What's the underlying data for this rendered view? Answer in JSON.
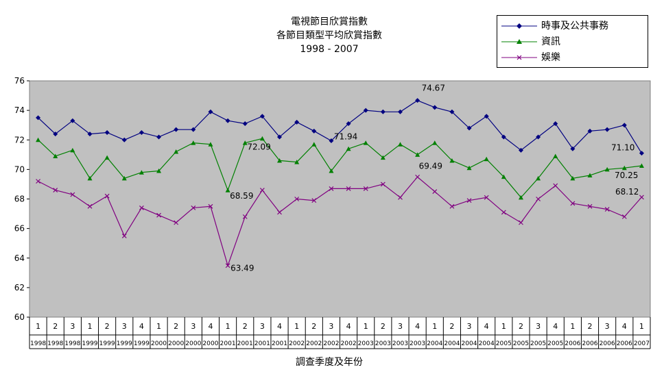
{
  "chart_data": {
    "type": "line",
    "title": [
      "電視節目欣賞指數",
      "各節目類型平均欣賞指數",
      "1998 - 2007"
    ],
    "xlabel": "調查季度及年份",
    "ylabel": "",
    "ylim": [
      60,
      76
    ],
    "yticks": [
      60,
      62,
      64,
      66,
      68,
      70,
      72,
      74,
      76
    ],
    "grid": false,
    "legend_position": "top-right",
    "categories": [
      {
        "q": "1",
        "y": "1998"
      },
      {
        "q": "2",
        "y": "1998"
      },
      {
        "q": "3",
        "y": "1998"
      },
      {
        "q": "1",
        "y": "1999"
      },
      {
        "q": "2",
        "y": "1999"
      },
      {
        "q": "3",
        "y": "1999"
      },
      {
        "q": "4",
        "y": "1999"
      },
      {
        "q": "1",
        "y": "2000"
      },
      {
        "q": "2",
        "y": "2000"
      },
      {
        "q": "3",
        "y": "2000"
      },
      {
        "q": "4",
        "y": "2000"
      },
      {
        "q": "1",
        "y": "2001"
      },
      {
        "q": "2",
        "y": "2001"
      },
      {
        "q": "3",
        "y": "2001"
      },
      {
        "q": "4",
        "y": "2001"
      },
      {
        "q": "1",
        "y": "2002"
      },
      {
        "q": "2",
        "y": "2002"
      },
      {
        "q": "3",
        "y": "2002"
      },
      {
        "q": "4",
        "y": "2002"
      },
      {
        "q": "1",
        "y": "2003"
      },
      {
        "q": "2",
        "y": "2003"
      },
      {
        "q": "3",
        "y": "2003"
      },
      {
        "q": "4",
        "y": "2003"
      },
      {
        "q": "1",
        "y": "2004"
      },
      {
        "q": "2",
        "y": "2004"
      },
      {
        "q": "3",
        "y": "2004"
      },
      {
        "q": "4",
        "y": "2004"
      },
      {
        "q": "1",
        "y": "2005"
      },
      {
        "q": "2",
        "y": "2005"
      },
      {
        "q": "3",
        "y": "2005"
      },
      {
        "q": "4",
        "y": "2005"
      },
      {
        "q": "1",
        "y": "2006"
      },
      {
        "q": "2",
        "y": "2006"
      },
      {
        "q": "3",
        "y": "2006"
      },
      {
        "q": "4",
        "y": "2006"
      },
      {
        "q": "1",
        "y": "2007"
      }
    ],
    "series": [
      {
        "name": "時事及公共事務",
        "color": "#000080",
        "marker": "diamond",
        "values": [
          73.5,
          72.4,
          73.3,
          72.4,
          72.5,
          72.0,
          72.5,
          72.2,
          72.7,
          72.7,
          73.9,
          73.3,
          73.1,
          73.6,
          72.2,
          73.2,
          72.6,
          71.94,
          73.1,
          74.0,
          73.9,
          73.9,
          74.67,
          74.2,
          73.9,
          72.8,
          73.6,
          72.2,
          71.3,
          72.2,
          73.1,
          71.4,
          72.6,
          72.7,
          73.0,
          71.1
        ],
        "labels": [
          {
            "index": 17,
            "text": "71.94"
          },
          {
            "index": 22,
            "text": "74.67"
          },
          {
            "index": 35,
            "text": "71.10"
          }
        ]
      },
      {
        "name": "資訊",
        "color": "#008000",
        "marker": "triangle",
        "values": [
          72.0,
          70.9,
          71.3,
          69.4,
          70.8,
          69.4,
          69.8,
          69.9,
          71.2,
          71.8,
          71.7,
          68.59,
          71.8,
          72.09,
          70.6,
          70.5,
          71.7,
          69.9,
          71.4,
          71.8,
          70.8,
          71.7,
          71.0,
          71.8,
          70.6,
          70.1,
          70.7,
          69.5,
          68.1,
          69.4,
          70.9,
          69.4,
          69.6,
          70.0,
          70.1,
          70.25
        ],
        "labels": [
          {
            "index": 11,
            "text": "68.59"
          },
          {
            "index": 13,
            "text": "72.09"
          },
          {
            "index": 35,
            "text": "70.25"
          }
        ]
      },
      {
        "name": "娛樂",
        "color": "#800080",
        "marker": "x",
        "values": [
          69.2,
          68.6,
          68.3,
          67.5,
          68.2,
          65.5,
          67.4,
          66.9,
          66.4,
          67.4,
          67.5,
          63.49,
          66.8,
          68.6,
          67.1,
          68.0,
          67.9,
          68.7,
          68.7,
          68.7,
          69.0,
          68.1,
          69.49,
          68.5,
          67.5,
          67.9,
          68.1,
          67.1,
          66.4,
          68.0,
          68.9,
          67.7,
          67.5,
          67.3,
          66.8,
          68.12
        ],
        "labels": [
          {
            "index": 11,
            "text": "63.49"
          },
          {
            "index": 22,
            "text": "69.49"
          },
          {
            "index": 35,
            "text": "68.12"
          }
        ]
      }
    ]
  }
}
